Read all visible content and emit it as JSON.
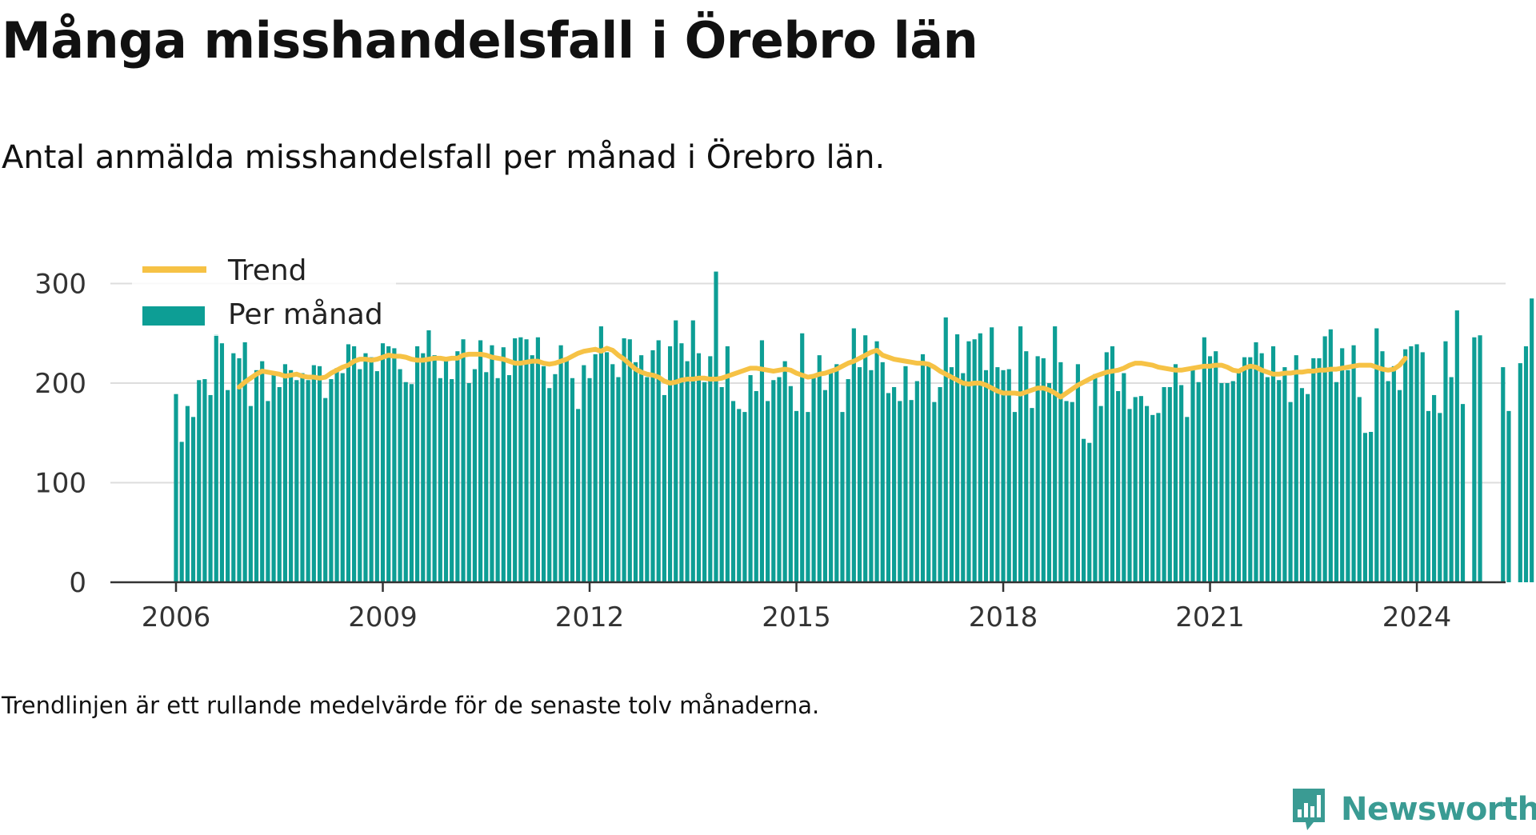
{
  "title": "Många misshandelsfall i Örebro län",
  "subtitle": "Antal anmälda misshandelsfall per månad i Örebro län.",
  "footnote": "Trendlinjen är ett rullande medelvärde för de senaste tolv månaderna.",
  "brand": {
    "name": "Newsworthy",
    "icon": "bar-chart-speech-bubble-icon",
    "color": "#3a9b93"
  },
  "chart_data": {
    "type": "bar",
    "x_start": "2006-01",
    "x_ticks": [
      "2006",
      "2009",
      "2012",
      "2015",
      "2018",
      "2021",
      "2024"
    ],
    "y_ticks": [
      "0",
      "100",
      "200",
      "300"
    ],
    "ylim": [
      0,
      300
    ],
    "grid": true,
    "legend_position": "top-left",
    "colors": {
      "bars": "#0d9e95",
      "trend": "#f6c245",
      "grid": "#dddddd",
      "axis": "#333333"
    },
    "series": [
      {
        "name": "Per månad",
        "type": "bar",
        "values": [
          189,
          141,
          177,
          166,
          203,
          204,
          188,
          249,
          240,
          193,
          230,
          225,
          241,
          177,
          213,
          222,
          182,
          211,
          196,
          219,
          213,
          203,
          210,
          203,
          218,
          217,
          185,
          204,
          215,
          210,
          239,
          237,
          214,
          230,
          226,
          212,
          240,
          237,
          235,
          214,
          201,
          199,
          237,
          230,
          253,
          228,
          205,
          224,
          204,
          232,
          244,
          200,
          214,
          243,
          211,
          238,
          205,
          236,
          208,
          245,
          246,
          244,
          228,
          246,
          217,
          195,
          209,
          238,
          226,
          205,
          174,
          218,
          205,
          229,
          257,
          231,
          219,
          206,
          245,
          244,
          221,
          228,
          206,
          233,
          243,
          188,
          237,
          263,
          240,
          222,
          263,
          230,
          201,
          227,
          312,
          196,
          237,
          182,
          174,
          171,
          208,
          192,
          243,
          182,
          203,
          206,
          222,
          197,
          172,
          250,
          171,
          206,
          228,
          193,
          211,
          219,
          171,
          204,
          255,
          216,
          248,
          213,
          242,
          221,
          190,
          196,
          182,
          217,
          183,
          202,
          229,
          217,
          181,
          196,
          266,
          216,
          249,
          210,
          242,
          244,
          250,
          213,
          256,
          216,
          213,
          214,
          171,
          257,
          232,
          175,
          227,
          225,
          200,
          257,
          221,
          182,
          181,
          219,
          144,
          140,
          209,
          177,
          231,
          237,
          192,
          210,
          174,
          186,
          187,
          177,
          168,
          170,
          196,
          196,
          219,
          198,
          166,
          214,
          201,
          246,
          227,
          232,
          200,
          200,
          202,
          213,
          226,
          226,
          241,
          230,
          206,
          237,
          203,
          216,
          181,
          228,
          195,
          189,
          225,
          225,
          247,
          254,
          201,
          235,
          213,
          238,
          186,
          150,
          151,
          255,
          232,
          202,
          217,
          193,
          234,
          237,
          239,
          231,
          172,
          188,
          170,
          242,
          206,
          273,
          179,
          0,
          246,
          248,
          0,
          0,
          0,
          216,
          172,
          0,
          220,
          237,
          285
        ]
      },
      {
        "name": "Trend",
        "type": "line",
        "start": "2006-12",
        "values": [
          196,
          201,
          205,
          209,
          212,
          211,
          210,
          209,
          207,
          208,
          209,
          207,
          206,
          206,
          205,
          206,
          210,
          213,
          216,
          218,
          222,
          224,
          224,
          223,
          224,
          226,
          228,
          227,
          227,
          226,
          224,
          223,
          223,
          224,
          225,
          225,
          224,
          225,
          225,
          228,
          229,
          229,
          229,
          228,
          226,
          225,
          224,
          222,
          220,
          220,
          221,
          222,
          222,
          220,
          219,
          220,
          222,
          224,
          227,
          230,
          232,
          233,
          234,
          232,
          235,
          233,
          228,
          224,
          219,
          214,
          211,
          209,
          208,
          206,
          202,
          200,
          201,
          203,
          204,
          204,
          205,
          205,
          204,
          204,
          205,
          207,
          209,
          211,
          213,
          215,
          215,
          214,
          213,
          212,
          213,
          214,
          213,
          210,
          208,
          206,
          207,
          209,
          210,
          212,
          214,
          217,
          220,
          222,
          225,
          228,
          231,
          233,
          228,
          226,
          224,
          223,
          222,
          221,
          220,
          220,
          219,
          216,
          212,
          209,
          206,
          203,
          200,
          199,
          200,
          200,
          198,
          195,
          192,
          190,
          190,
          190,
          189,
          191,
          193,
          195,
          195,
          193,
          190,
          186,
          190,
          194,
          198,
          201,
          204,
          207,
          209,
          211,
          212,
          213,
          215,
          218,
          220,
          220,
          219,
          218,
          216,
          215,
          214,
          213,
          213,
          214,
          215,
          216,
          217,
          217,
          218,
          218,
          216,
          213,
          212,
          215,
          217,
          216,
          213,
          211,
          209,
          209,
          210,
          210,
          211,
          211,
          212,
          212,
          213,
          213,
          214,
          214,
          215,
          216,
          217,
          218,
          218,
          218,
          216,
          214,
          213,
          214,
          218,
          225
        ]
      }
    ]
  }
}
